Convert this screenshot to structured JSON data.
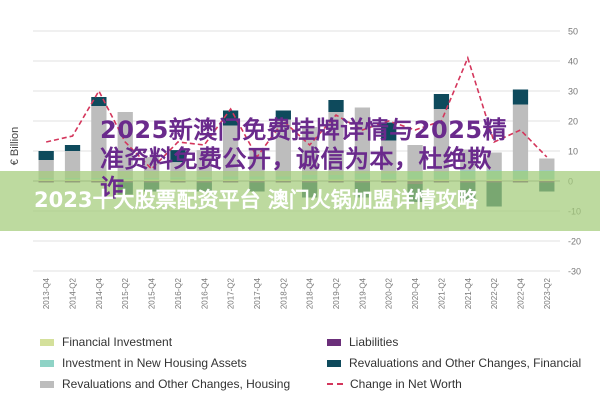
{
  "chart_data": {
    "type": "bar",
    "title": "",
    "xlabel": "",
    "ylabel": "€ Billion",
    "ylim": [
      -30,
      50
    ],
    "yticks": [
      -30,
      -20,
      -10,
      0,
      10,
      20,
      30,
      40,
      50
    ],
    "categories": [
      "2013-Q4",
      "2014-Q2",
      "2014-Q4",
      "2015-Q2",
      "2015-Q4",
      "2016-Q2",
      "2016-Q4",
      "2017-Q2",
      "2017-Q4",
      "2018-Q2",
      "2018-Q4",
      "2019-Q2",
      "2019-Q4",
      "2020-Q2",
      "2020-Q4",
      "2021-Q2",
      "2021-Q4",
      "2022-Q2",
      "2022-Q4",
      "2023-Q2"
    ],
    "grid": true,
    "legend_position": "bottom",
    "stacked": true,
    "series": [
      {
        "name": "Financial Investment",
        "color": "#d4e09b",
        "values": [
          0.5,
          0.5,
          0.5,
          0.5,
          0.5,
          0.5,
          0.5,
          0.5,
          0.5,
          0.5,
          0.5,
          0.5,
          0.5,
          0.5,
          0.5,
          0.5,
          0.5,
          0.5,
          0.5,
          0.5
        ]
      },
      {
        "name": "Investment in New Housing Assets",
        "color": "#8fd3c6",
        "values": [
          0.5,
          0.5,
          0.5,
          0.5,
          0.5,
          0.8,
          0.8,
          1,
          1,
          1,
          1.5,
          1.5,
          2,
          2,
          2.5,
          2.5,
          3,
          3,
          3,
          3
        ]
      },
      {
        "name": "Revaluations and Other Changes, Housing",
        "color": "#bdbdbd",
        "values": [
          6,
          9,
          24,
          22,
          7,
          5,
          9,
          17,
          9,
          19,
          16,
          21,
          22,
          11,
          9,
          21,
          7,
          6,
          22,
          4
        ]
      },
      {
        "name": "Liabilities",
        "color": "#6b2f7a",
        "values": [
          -0.5,
          -0.5,
          -0.5,
          -0.5,
          -0.5,
          -0.5,
          -0.5,
          -0.5,
          -0.5,
          -0.5,
          -0.5,
          -0.5,
          -0.5,
          -0.5,
          -1,
          -0.5,
          -0.5,
          -0.5,
          -0.5,
          -0.5
        ]
      },
      {
        "name": "Revaluations and Other Changes, Financial",
        "color": "#0e4a5c",
        "values": [
          3,
          2,
          3,
          -4,
          -3,
          4,
          -3,
          5,
          -3,
          3,
          -5,
          4,
          -5,
          6,
          -6,
          5,
          -6,
          -8,
          5,
          -3
        ]
      },
      {
        "name": "Change in Net Worth",
        "color": "#d4365c",
        "type": "line",
        "values": [
          13,
          15,
          30,
          13,
          4,
          13,
          12,
          24,
          8,
          20,
          12,
          22,
          17,
          20,
          17,
          20,
          41,
          13,
          17,
          8
        ]
      }
    ]
  },
  "overlay": {
    "title": "2025新澳门免费挂牌详情与2025精准资料免费公开，诚信为本，杜绝欺诈",
    "subtitle": "2023十大股票配资平台 澳门火锅加盟详情攻略"
  },
  "colors": {
    "grid": "#e0e0e0",
    "axis": "#888888",
    "banner": "#a3cc7a"
  }
}
